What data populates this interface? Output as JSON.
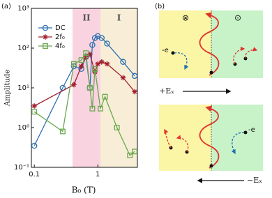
{
  "chart_data": {
    "type": "line",
    "panel_label": "(a)",
    "xlabel": "B₀ (T)",
    "ylabel": "Amplitude",
    "log_x": true,
    "log_y": true,
    "xlim": [
      0.09,
      4.2
    ],
    "ylim": [
      0.1,
      1000
    ],
    "xticks": [
      0.1,
      1
    ],
    "yticks": [
      {
        "value": 0.1,
        "label": "10⁻¹"
      },
      {
        "value": 1,
        "label": "10⁰"
      },
      {
        "value": 10,
        "label": "10¹"
      },
      {
        "value": 100,
        "label": "10²"
      },
      {
        "value": 1000,
        "label": "10³"
      }
    ],
    "regions": [
      {
        "label": "II",
        "range": [
          0.4,
          1.1
        ],
        "color": "#f9d3e0"
      },
      {
        "label": "I",
        "range": [
          1.1,
          4.2
        ],
        "color": "#f8eed7"
      }
    ],
    "legend": "upper left",
    "series": [
      {
        "name": "DC",
        "color": "#2d6fb2",
        "marker": "circle",
        "x": [
          0.1,
          0.28,
          0.42,
          0.55,
          0.65,
          0.75,
          0.82,
          0.9,
          1.0,
          1.15,
          1.4,
          2.5,
          3.8
        ],
        "values": [
          0.35,
          10,
          35,
          30,
          60,
          10,
          120,
          180,
          200,
          180,
          130,
          45,
          20
        ]
      },
      {
        "name": "2f₀",
        "color": "#a3202f",
        "marker": "star",
        "x": [
          0.1,
          0.42,
          0.55,
          0.65,
          0.75,
          0.9,
          1.0,
          1.15,
          1.4,
          2.5,
          3.8
        ],
        "values": [
          3.5,
          12,
          35,
          60,
          70,
          25,
          40,
          45,
          40,
          18,
          8
        ]
      },
      {
        "name": "4f₀",
        "color": "#6aa84f",
        "marker": "square",
        "x": [
          0.1,
          0.28,
          0.42,
          0.55,
          0.65,
          0.75,
          0.82,
          0.9,
          1.1,
          1.3,
          2.0,
          3.2,
          3.8
        ],
        "values": [
          2.5,
          0.8,
          40,
          50,
          75,
          10,
          3,
          30,
          3,
          6,
          1,
          0.2,
          0.25
        ]
      }
    ]
  },
  "diagram": {
    "label": "(b)",
    "top": {
      "field_left": "⊗",
      "field_right": "⊙",
      "electron": "-e",
      "efield": "+Eₓ"
    },
    "bottom": {
      "electron": "-e",
      "efield": "−Eₓ"
    }
  }
}
